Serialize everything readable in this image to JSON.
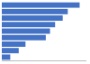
{
  "chart_data": {
    "type": "bar",
    "orientation": "horizontal",
    "categories": [
      null,
      null,
      null,
      null,
      null,
      null,
      null,
      null,
      null
    ],
    "values": [
      0.92,
      0.78,
      0.72,
      0.63,
      0.57,
      0.52,
      0.28,
      0.2,
      0.1
    ],
    "color": "#4472c4",
    "xlim": [
      0,
      1.0
    ],
    "tick_labels": false
  }
}
